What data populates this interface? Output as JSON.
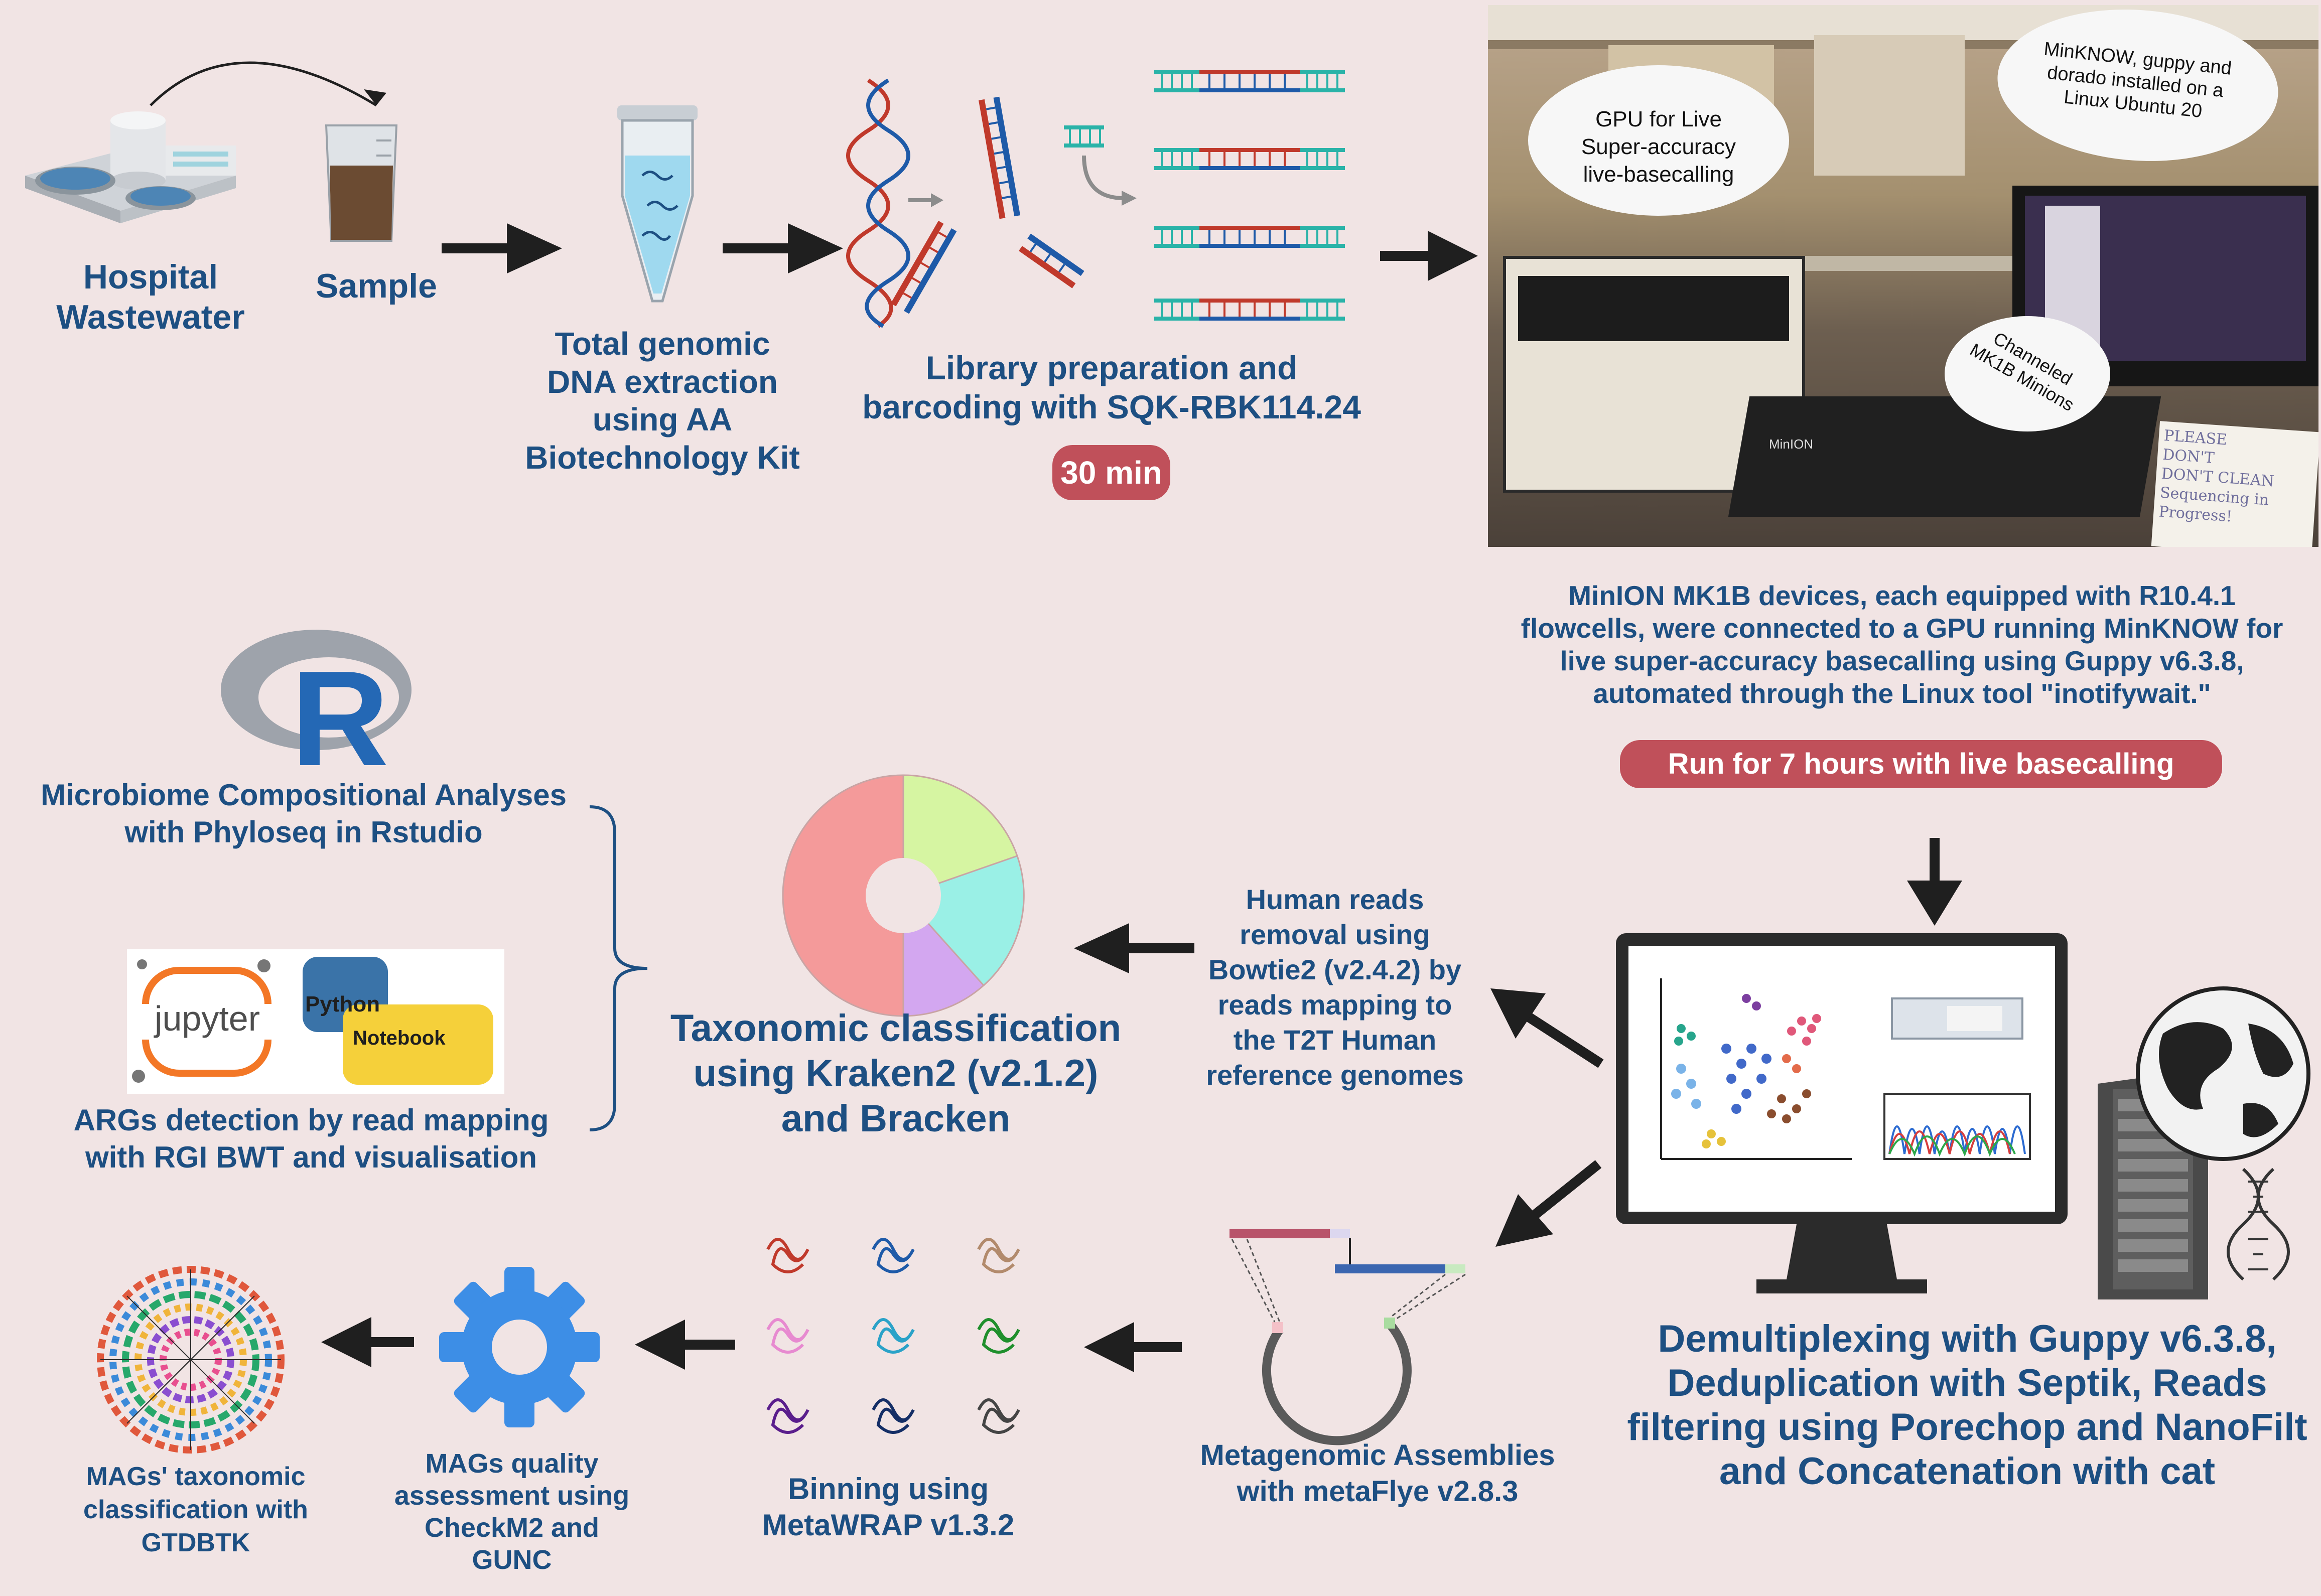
{
  "steps": {
    "hospital": "Hospital\nWastewater",
    "sample": "Sample",
    "extraction": "Total genomic\nDNA extraction\nusing AA\nBiotechnology Kit",
    "library": "Library preparation and\nbarcoding with SQK-RBK114.24",
    "library_time": "30 min",
    "minion": "MinION MK1B devices, each equipped with R10.4.1\nflowcells, were connected to a GPU running MinKNOW for\nlive super-accuracy basecalling using Guppy v6.3.8,\nautomated through the Linux tool \"inotifywait.\"",
    "run_time": "Run for 7 hours with live basecalling",
    "demux": "Demultiplexing with Guppy v6.3.8,\nDeduplication with Septik, Reads\nfiltering using Porechop and NanoFilt\nand Concatenation with cat",
    "human_removal": "Human reads\nremoval using\nBowtie2 (v2.4.2) by\nreads mapping to\nthe T2T Human\nreference genomes",
    "taxonomic": "Taxonomic classification\nusing Kraken2 (v2.1.2)\nand Bracken",
    "microbiome": "Microbiome Compositional Analyses\nwith Phyloseq in Rstudio",
    "args": "ARGs detection by read mapping\nwith RGI BWT and visualisation",
    "assembly": "Metagenomic Assemblies\nwith metaFlye v2.8.3",
    "binning": "Binning using\nMetaWRAP v1.3.2",
    "quality": "MAGs quality\nassessment using\nCheckM2 and\nGUNC",
    "gtdbtk": "MAGs' taxonomic\nclassification with\nGTDBTK"
  },
  "photo_callouts": {
    "gpu": "GPU for Live\nSuper-accuracy\nlive-basecalling",
    "software": "MinKNOW, guppy and\ndorado installed on a\nLinux Ubuntu 20",
    "minions": "Channeled\nMK1B Minions",
    "device_label": "MinION",
    "note": "PLEASE\nDON'T\nDON'T CLEAN\nSequencing in\nProgress!"
  },
  "logos": {
    "r": "R",
    "jupyter": "jupyter",
    "python": "Python",
    "notebook": "Notebook"
  },
  "colors": {
    "text": "#1d4f82",
    "pill": "#c0505a",
    "background": "#f1e4e4",
    "arrow": "#1f1f1f"
  },
  "icons": [
    "hospital-wastewater-icon",
    "sample-beaker-icon",
    "tube-icon",
    "dna-fragment-icon",
    "lab-photo",
    "monitor-icon",
    "server-icon",
    "globe-icon",
    "donut-chart-icon",
    "r-logo",
    "jupyter-logo",
    "python-logo",
    "assembly-icon",
    "bins-icon",
    "gear-icon",
    "gtdbtk-wheel-icon"
  ]
}
